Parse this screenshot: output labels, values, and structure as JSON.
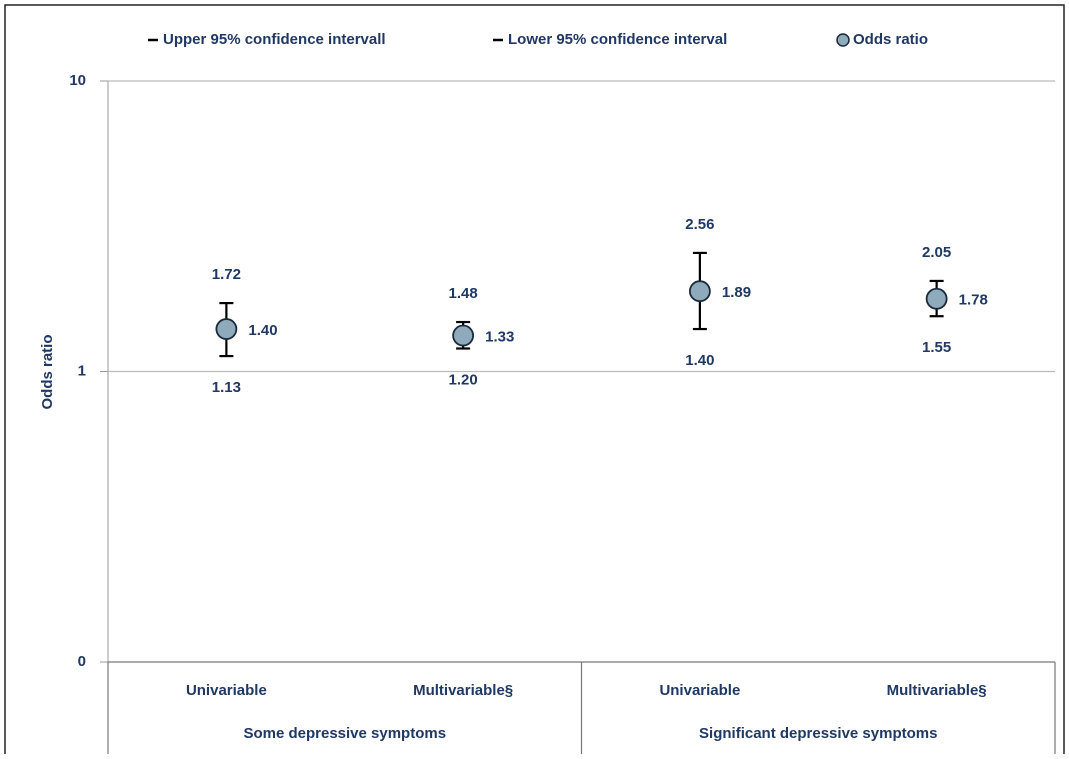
{
  "chart_data": {
    "type": "errorbar",
    "y_label": "Odds ratio",
    "categories": [
      "Univariable",
      "Multivariable§",
      "Univariable",
      "Multivariable§"
    ],
    "groups": [
      "Some depressive symptoms",
      "Significant depressive symptoms"
    ],
    "series": [
      {
        "name": "Upper 95% confidence intervall",
        "color": "#000000",
        "values": [
          1.72,
          1.48,
          2.56,
          2.05
        ],
        "value_labels": [
          "1.72",
          "1.48",
          "2.56",
          "2.05"
        ]
      },
      {
        "name": "Lower 95% confidence interval",
        "color": "#000000",
        "values": [
          1.13,
          1.2,
          1.4,
          1.55
        ],
        "value_labels": [
          "1.13",
          "1.20",
          "1.40",
          "1.55"
        ]
      },
      {
        "name": "Odds ratio",
        "color": "#8eaabb",
        "values": [
          1.4,
          1.33,
          1.89,
          1.78
        ],
        "value_labels": [
          "1.40",
          "1.33",
          "1.89",
          "1.78"
        ]
      }
    ],
    "ylim": [
      0.1,
      10
    ],
    "yticks": [
      {
        "value": 0.1,
        "label": "0"
      },
      1,
      10
    ],
    "log_scale": true,
    "grid": true,
    "legend": "top"
  }
}
